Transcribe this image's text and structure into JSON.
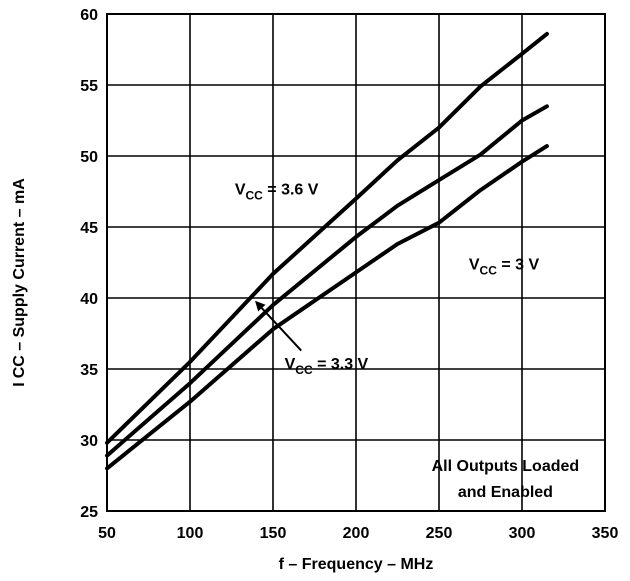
{
  "chart_data": {
    "type": "line",
    "title": "",
    "xlabel": "f – Frequency – MHz",
    "ylabel": {
      "main": "I",
      "sub": "CC",
      "rest": " – Supply Current – mA"
    },
    "xlim": [
      50,
      350
    ],
    "ylim": [
      25,
      60
    ],
    "xticks": [
      50,
      100,
      150,
      200,
      250,
      300,
      350
    ],
    "yticks": [
      25,
      30,
      35,
      40,
      45,
      50,
      55,
      60
    ],
    "grid": true,
    "series": [
      {
        "name": "VCC = 3.6 V",
        "x": [
          50,
          100,
          150,
          200,
          225,
          250,
          275,
          300,
          315
        ],
        "y": [
          29.8,
          35.5,
          41.7,
          47.0,
          49.7,
          52.0,
          54.9,
          57.2,
          58.6
        ]
      },
      {
        "name": "VCC = 3.3 V",
        "x": [
          50,
          100,
          150,
          200,
          225,
          250,
          275,
          300,
          315
        ],
        "y": [
          28.9,
          34.0,
          39.5,
          44.3,
          46.5,
          48.3,
          50.1,
          52.5,
          53.5
        ]
      },
      {
        "name": "VCC = 3 V",
        "x": [
          50,
          100,
          150,
          200,
          225,
          250,
          275,
          300,
          315
        ],
        "y": [
          28.0,
          32.7,
          37.8,
          41.8,
          43.8,
          45.3,
          47.6,
          49.6,
          50.7
        ]
      }
    ],
    "annotations": [
      {
        "main": "V",
        "sub": "CC",
        "rest": " = 3.6 V",
        "x": 127,
        "y": 47.3
      },
      {
        "main": "V",
        "sub": "CC",
        "rest": " = 3 V",
        "x": 268,
        "y": 42.0
      },
      {
        "main": "V",
        "sub": "CC",
        "rest": " = 3.3 V",
        "x": 157,
        "y": 35.0
      },
      {
        "text": "All Outputs Loaded",
        "x": 290,
        "y": 27.8
      },
      {
        "text": "and Enabled",
        "x": 290,
        "y": 26.0
      }
    ],
    "arrow": {
      "from": [
        167,
        36.3
      ],
      "to": [
        140,
        39.7
      ]
    }
  }
}
